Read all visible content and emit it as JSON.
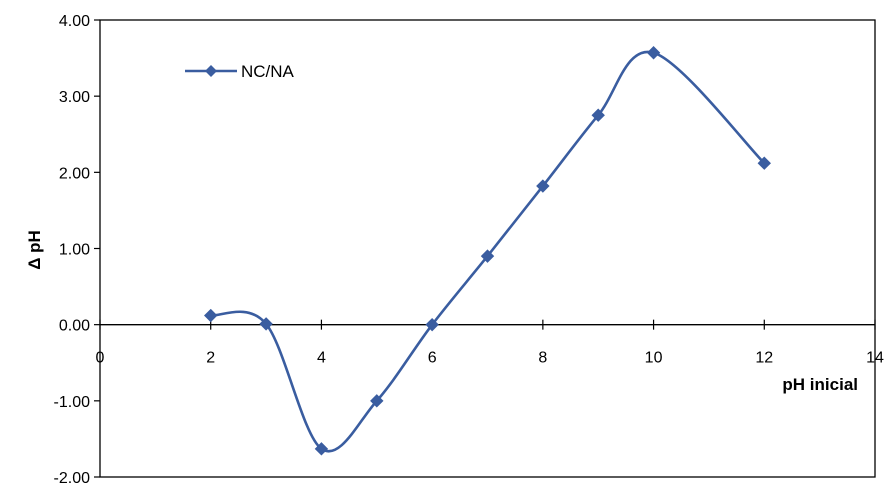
{
  "chart_data": {
    "type": "scatter",
    "xlabel": "pH inicial",
    "ylabel": "Δ pH",
    "xlim": [
      0,
      14
    ],
    "ylim": [
      -2,
      4
    ],
    "x_ticks": [
      0,
      2,
      4,
      6,
      8,
      10,
      12,
      14
    ],
    "x_tick_labels": [
      "0",
      "2",
      "4",
      "6",
      "8",
      "10",
      "12",
      "14"
    ],
    "y_ticks": [
      -2,
      -1,
      0,
      1,
      2,
      3,
      4
    ],
    "y_tick_labels": [
      "-2.00",
      "-1.00",
      "0.00",
      "1.00",
      "2.00",
      "3.00",
      "4.00"
    ],
    "grid": false,
    "smooth_line": true,
    "legend_position": "top-left",
    "series": [
      {
        "name": "NC/NA",
        "color": "#3A5DA0",
        "marker": "diamond",
        "x": [
          2,
          3,
          4,
          5,
          6,
          7,
          8,
          9,
          10,
          12
        ],
        "y": [
          0.12,
          0.01,
          -1.63,
          -1.0,
          0.0,
          0.9,
          1.82,
          2.75,
          3.57,
          2.12
        ]
      }
    ]
  }
}
